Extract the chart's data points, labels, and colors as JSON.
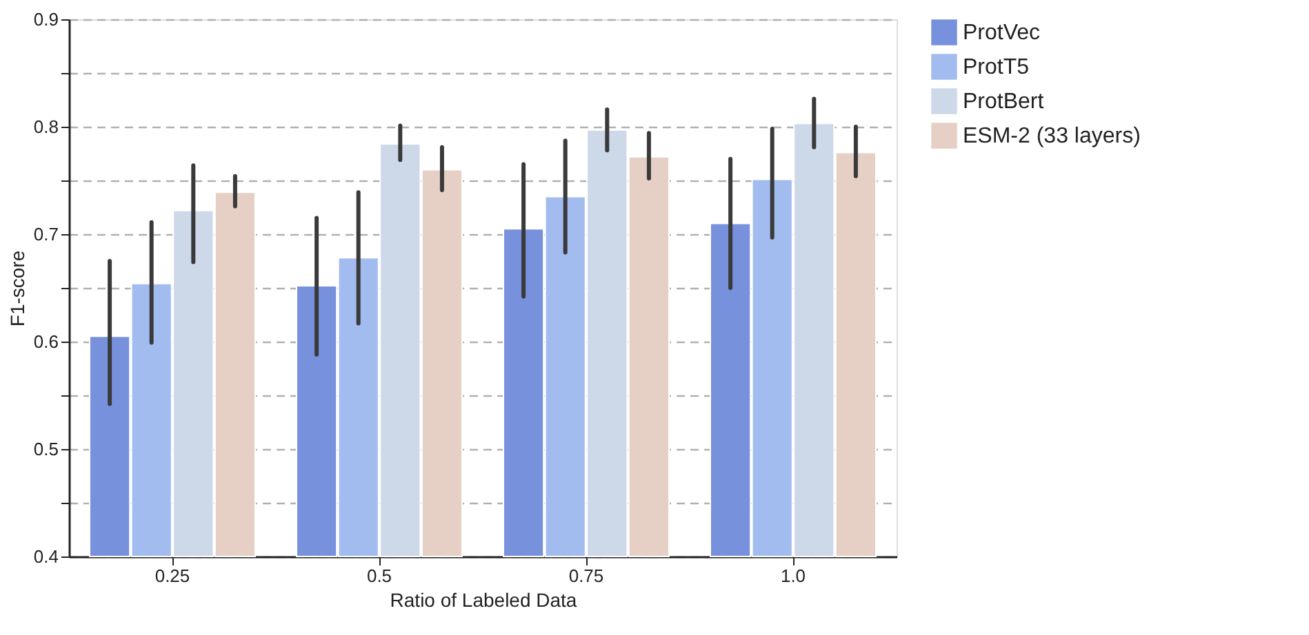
{
  "chart_data": {
    "type": "bar",
    "xlabel": "Ratio of Labeled Data",
    "ylabel": "F1-score",
    "categories": [
      "0.25",
      "0.5",
      "0.75",
      "1.0"
    ],
    "series": [
      {
        "name": "ProtVec",
        "color": "#7891dc",
        "values": [
          0.605,
          0.652,
          0.705,
          0.71
        ],
        "errors": [
          [
            0.542,
            0.675
          ],
          [
            0.588,
            0.715
          ],
          [
            0.642,
            0.765
          ],
          [
            0.65,
            0.77
          ]
        ]
      },
      {
        "name": "ProtT5",
        "color": "#a3bcf0",
        "values": [
          0.654,
          0.678,
          0.735,
          0.751
        ],
        "errors": [
          [
            0.599,
            0.711
          ],
          [
            0.617,
            0.739
          ],
          [
            0.683,
            0.787
          ],
          [
            0.697,
            0.798
          ]
        ]
      },
      {
        "name": "ProtBert",
        "color": "#cdd8e9",
        "values": [
          0.722,
          0.784,
          0.797,
          0.803
        ],
        "errors": [
          [
            0.674,
            0.764
          ],
          [
            0.769,
            0.801
          ],
          [
            0.778,
            0.816
          ],
          [
            0.781,
            0.826
          ]
        ]
      },
      {
        "name": "ESM-2 (33 layers)",
        "color": "#e6cfc4",
        "values": [
          0.739,
          0.76,
          0.772,
          0.776
        ],
        "errors": [
          [
            0.726,
            0.754
          ],
          [
            0.741,
            0.781
          ],
          [
            0.752,
            0.794
          ],
          [
            0.754,
            0.8
          ]
        ]
      }
    ],
    "ylim": [
      0.4,
      0.9
    ],
    "yticks": [
      0.4,
      {
        "value": 0.45,
        "label": null
      },
      0.5,
      {
        "value": 0.55,
        "label": null
      },
      0.6,
      {
        "value": 0.65,
        "label": null
      },
      0.7,
      {
        "value": 0.75,
        "label": null
      },
      0.8,
      {
        "value": 0.85,
        "label": null
      },
      0.9
    ],
    "grid": "y",
    "legend": "right"
  }
}
